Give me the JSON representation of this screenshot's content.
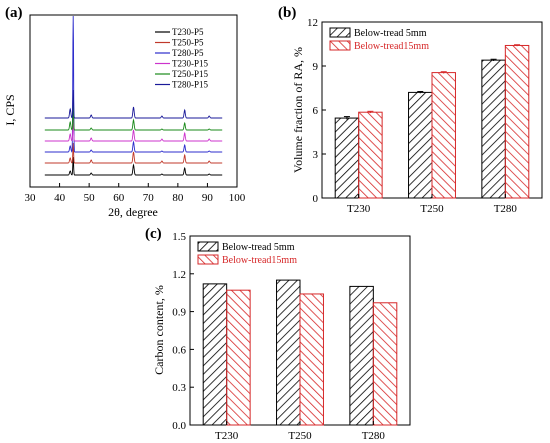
{
  "chart_data": [
    {
      "panel_label": "(a)",
      "type": "line",
      "xlabel": "2θ, degree",
      "ylabel": "I, CPS",
      "xlim": [
        30,
        100
      ],
      "xticks": [
        "30",
        "40",
        "50",
        "60",
        "70",
        "80",
        "90",
        "100"
      ],
      "series": [
        {
          "name": "T230-P5",
          "color": "#000000"
        },
        {
          "name": "T250-P5",
          "color": "#c0392b"
        },
        {
          "name": "T280-P5",
          "color": "#2d2dcc"
        },
        {
          "name": "T230-P15",
          "color": "#cc33cc"
        },
        {
          "name": "T250-P15",
          "color": "#1a8a1a"
        },
        {
          "name": "T280-P15",
          "color": "#1a1a99"
        }
      ],
      "peaks_2theta": [
        43.6,
        44.6,
        50.7,
        65.0,
        74.6,
        82.3,
        90.6
      ]
    },
    {
      "panel_label": "(b)",
      "type": "bar",
      "ylabel": "Volume fraction of RA, %",
      "categories": [
        "T230",
        "T250",
        "T280"
      ],
      "ylim": [
        0,
        12
      ],
      "yticks": [
        "0",
        "3",
        "6",
        "9",
        "12"
      ],
      "series": [
        {
          "name": "Below-tread 5mm",
          "values": [
            5.45,
            7.2,
            9.4
          ],
          "errors": [
            0.1,
            0.06,
            0.06
          ],
          "color": "#000000"
        },
        {
          "name": "Below-tread15mm",
          "values": [
            5.85,
            8.55,
            10.4
          ],
          "errors": [
            0.06,
            0.06,
            0.05
          ],
          "color": "#d62728"
        }
      ]
    },
    {
      "panel_label": "(c)",
      "type": "bar",
      "ylabel": "Carbon content, %",
      "categories": [
        "T230",
        "T250",
        "T280"
      ],
      "ylim": [
        0,
        1.5
      ],
      "yticks": [
        "0.0",
        "0.3",
        "0.6",
        "0.9",
        "1.2",
        "1.5"
      ],
      "series": [
        {
          "name": "Below-tread 5mm",
          "values": [
            1.12,
            1.15,
            1.1
          ],
          "color": "#000000"
        },
        {
          "name": "Below-tread15mm",
          "values": [
            1.07,
            1.04,
            0.97
          ],
          "color": "#d62728"
        }
      ]
    }
  ]
}
